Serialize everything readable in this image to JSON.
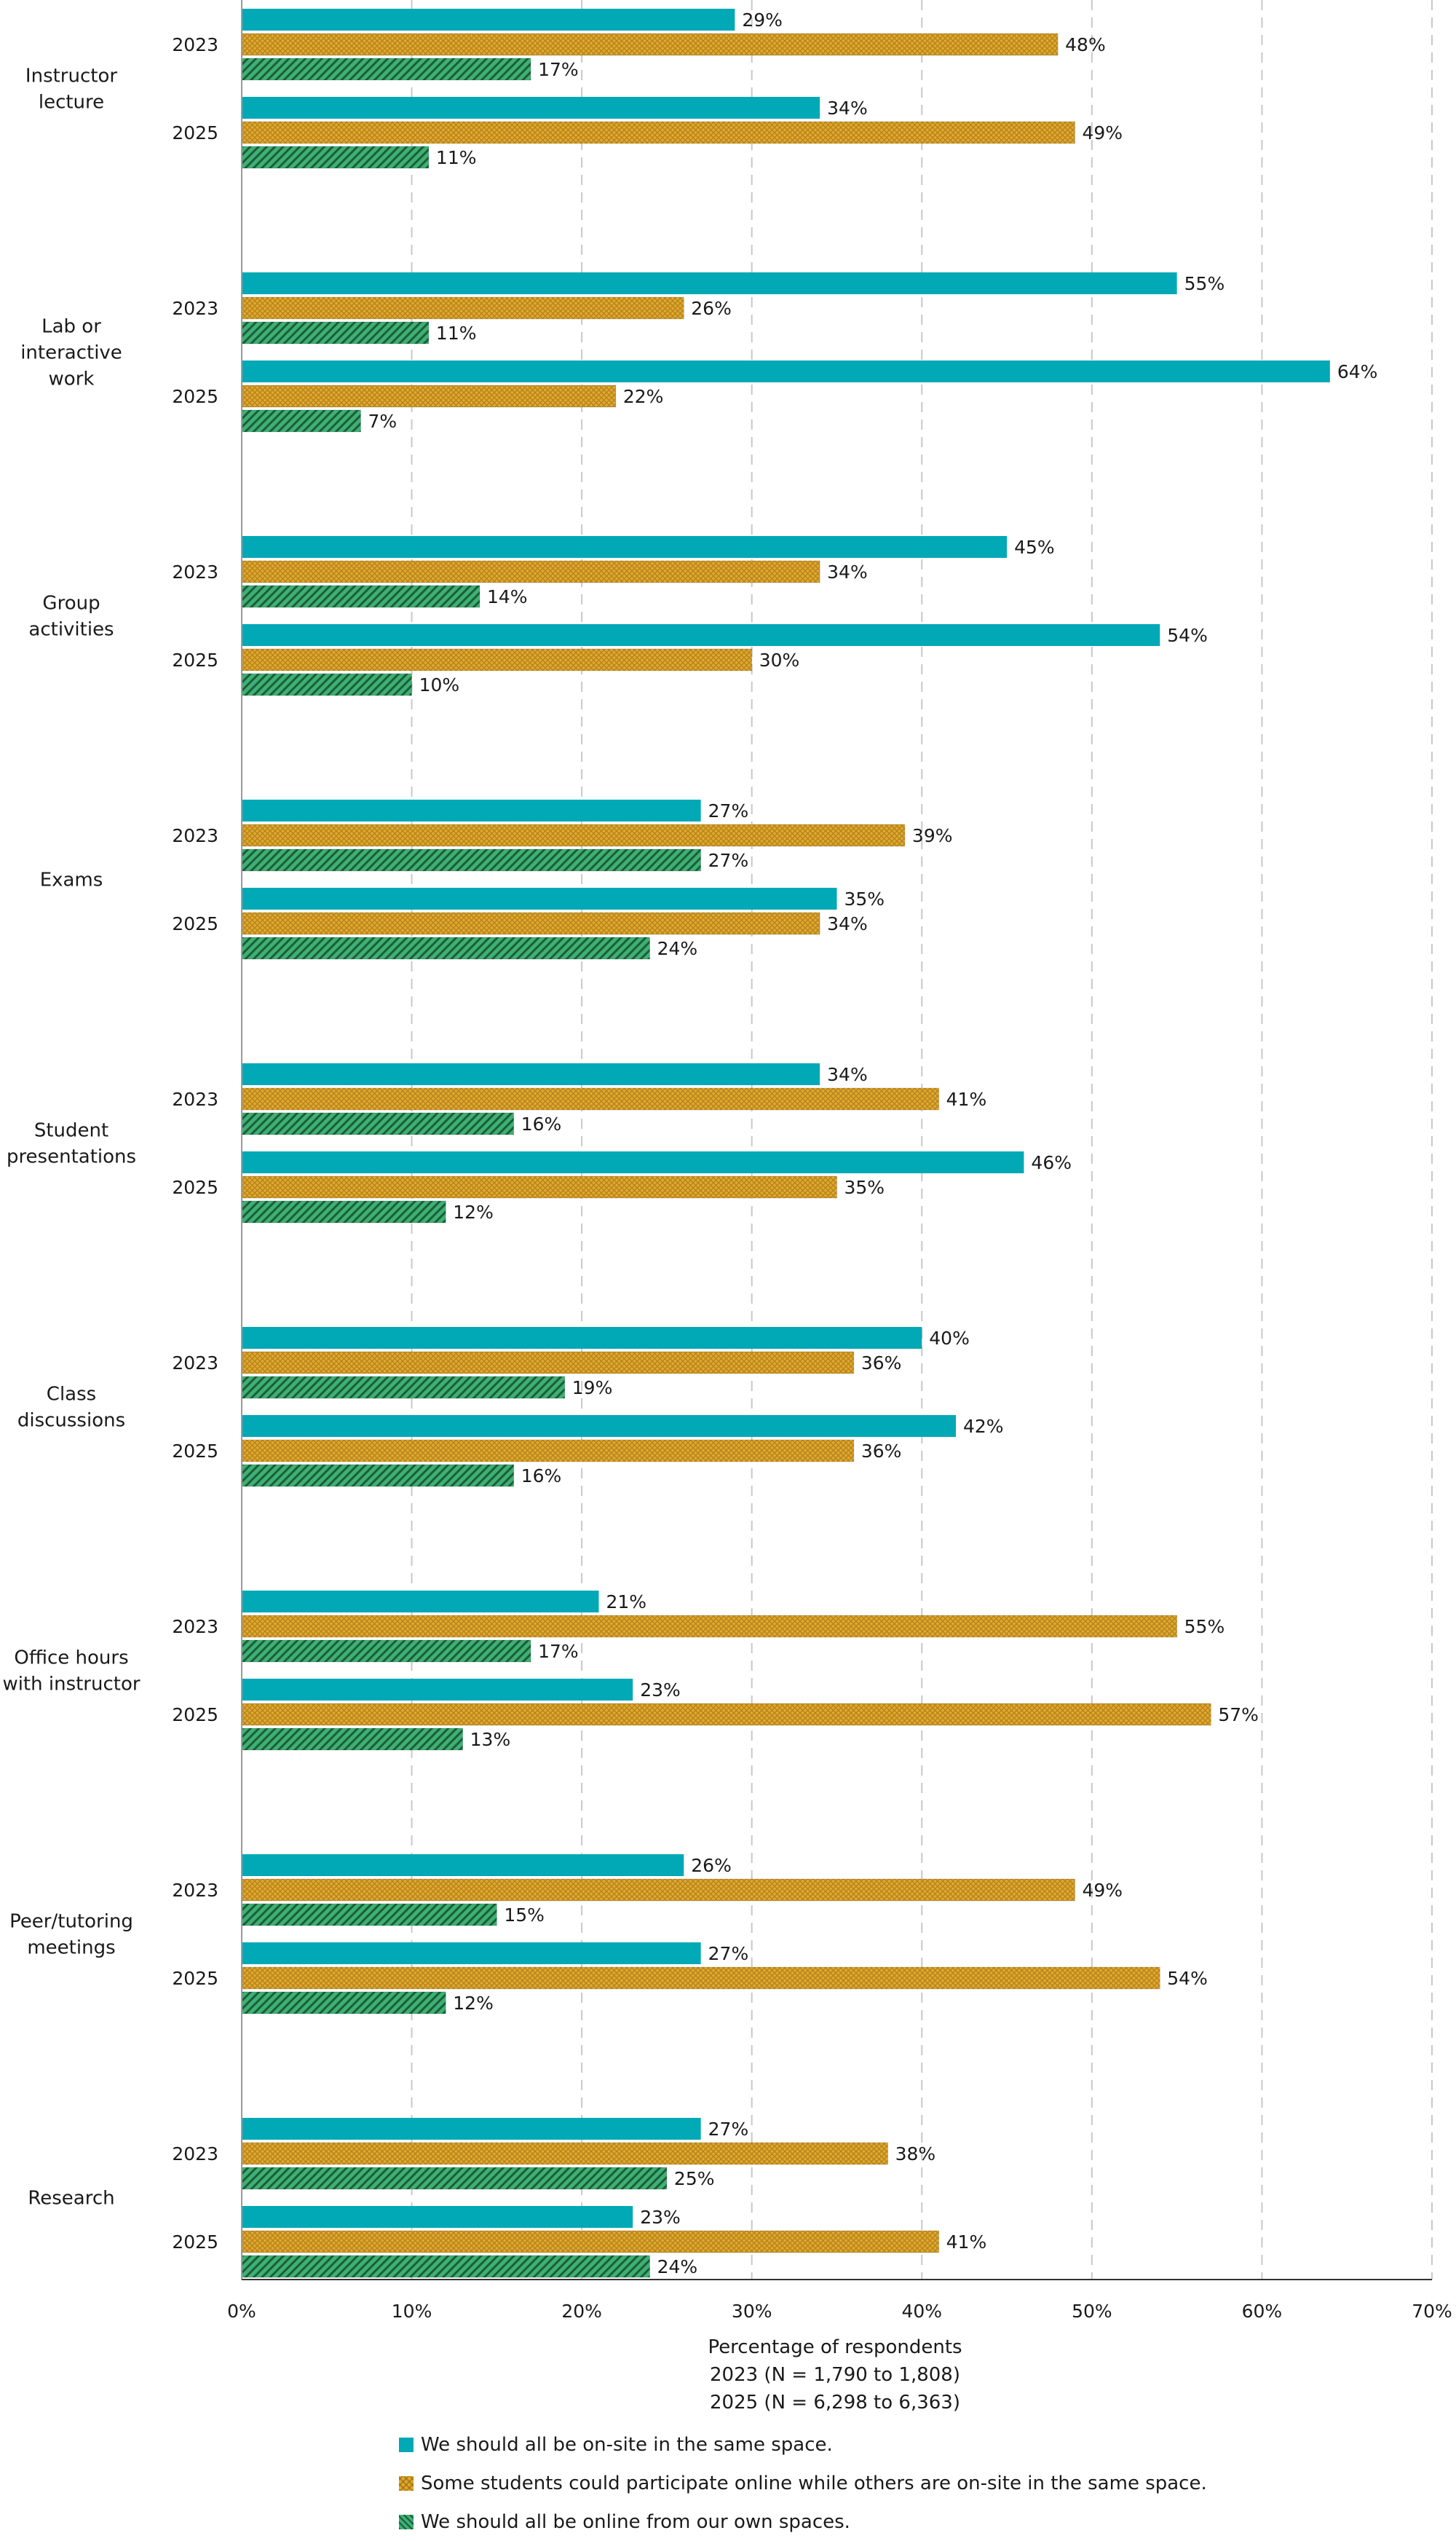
{
  "chart_data": {
    "type": "bar",
    "orientation": "horizontal",
    "categories": [
      "Instructor lecture",
      "Lab or interactive work",
      "Group activities",
      "Exams",
      "Student presentations",
      "Class discussions",
      "Office hours with instructor",
      "Peer/tutoring meetings",
      "Research"
    ],
    "category_labels": [
      [
        "Instructor",
        "lecture"
      ],
      [
        "Lab or",
        "interactive",
        "work"
      ],
      [
        "Group",
        "activities"
      ],
      [
        "Exams"
      ],
      [
        "Student",
        "presentations"
      ],
      [
        "Class",
        "discussions"
      ],
      [
        "Office hours",
        "with instructor"
      ],
      [
        "Peer/tutoring",
        "meetings"
      ],
      [
        "Research"
      ]
    ],
    "years": [
      "2023",
      "2025"
    ],
    "series": [
      {
        "name": "We should all be on-site in the same space.",
        "key": "onsite",
        "color": "#00a9b5",
        "pattern": "solid",
        "values": {
          "2023": [
            29,
            55,
            45,
            27,
            34,
            40,
            21,
            26,
            27
          ],
          "2025": [
            34,
            64,
            54,
            35,
            46,
            42,
            23,
            27,
            23
          ]
        }
      },
      {
        "name": "Some students could participate online while others are on-site in the same space.",
        "key": "hybrid",
        "color": "#e0a92c",
        "pattern": "crosshatch",
        "values": {
          "2023": [
            48,
            26,
            34,
            39,
            41,
            36,
            55,
            49,
            38
          ],
          "2025": [
            49,
            22,
            30,
            34,
            35,
            36,
            57,
            54,
            41
          ]
        }
      },
      {
        "name": "We should all be online from our own spaces.",
        "key": "online",
        "color": "#3eb073",
        "pattern": "diagonal",
        "values": {
          "2023": [
            17,
            11,
            14,
            27,
            16,
            19,
            17,
            15,
            25
          ],
          "2025": [
            11,
            7,
            10,
            24,
            12,
            16,
            13,
            12,
            24
          ]
        }
      }
    ],
    "x_ticks": [
      "0%",
      "10%",
      "20%",
      "30%",
      "40%",
      "50%",
      "60%",
      "70%"
    ],
    "xlim": [
      0,
      70
    ],
    "xlabel": [
      "Percentage of respondents",
      "2023 (N = 1,790 to 1,808)",
      "2025 (N = 6,298 to 6,363)"
    ],
    "grid": "vertical dashed",
    "legend_position": "bottom"
  }
}
